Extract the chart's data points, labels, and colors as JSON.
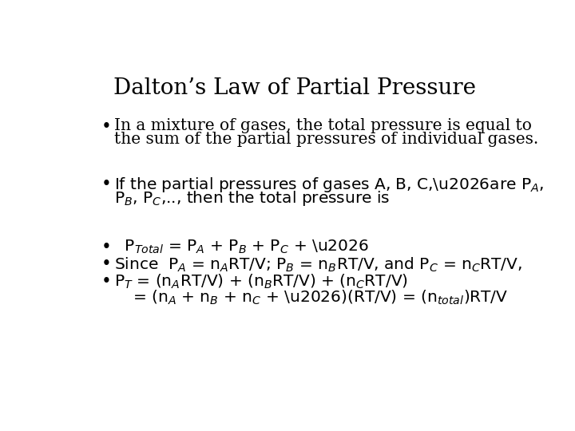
{
  "title": "Dalton’s Law of Partial Pressure",
  "background_color": "#ffffff",
  "text_color": "#000000",
  "title_fontsize": 20,
  "body_fontsize": 14.5,
  "font_family": "DejaVu Serif",
  "bullet": "•"
}
